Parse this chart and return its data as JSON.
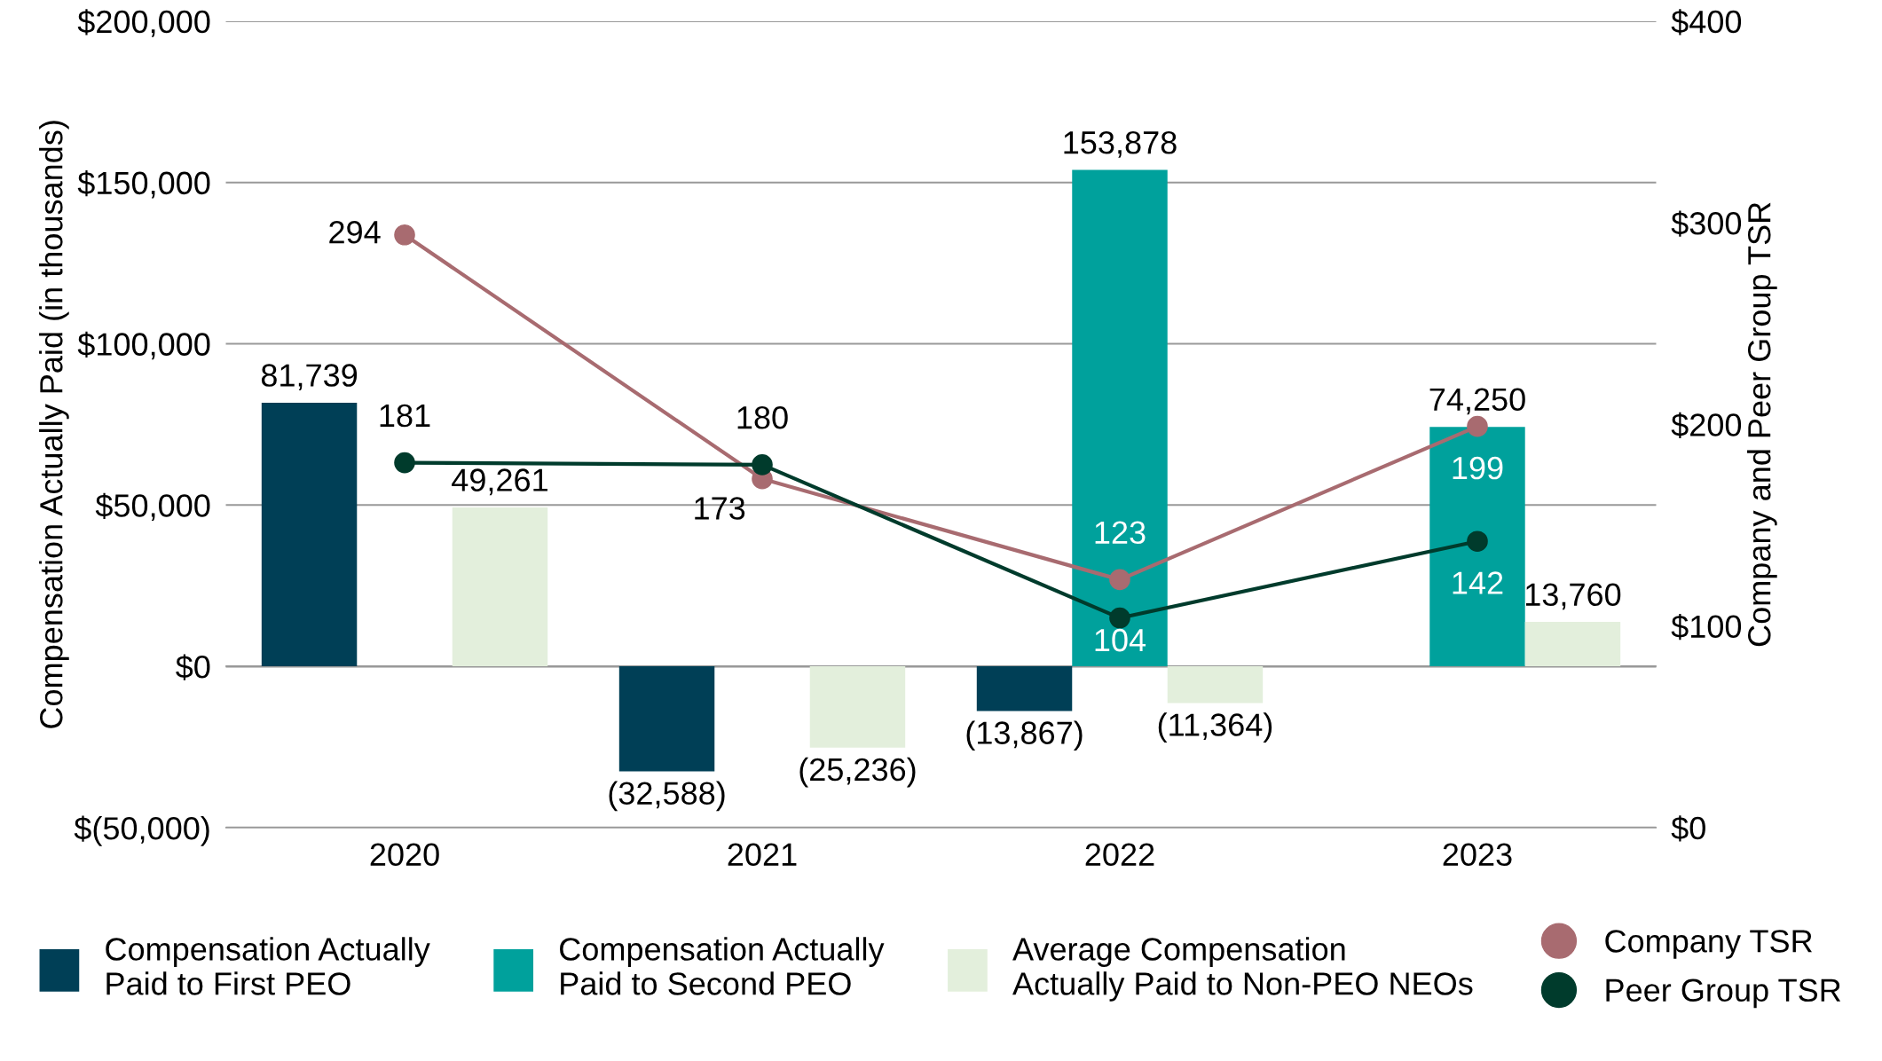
{
  "chart_data": {
    "type": "bar",
    "ylabel": "Compensation Actually Paid (in thousands)",
    "y2label": "Company and Peer Group TSR",
    "categories": [
      "2020",
      "2021",
      "2022",
      "2023"
    ],
    "series": [
      {
        "name": "Compensation Actually Paid to First PEO",
        "color": "#003f56",
        "values": [
          81739,
          -32588,
          -13867,
          null
        ],
        "value_labels": [
          "81,739",
          "(32,588)",
          "(13,867)",
          null
        ]
      },
      {
        "name": "Compensation Actually Paid to Second PEO",
        "color": "#00a19c",
        "values": [
          null,
          null,
          153878,
          74250
        ],
        "value_labels": [
          null,
          null,
          "153,878",
          "74,250"
        ]
      },
      {
        "name": "Average Compensation Actually Paid to Non-PEO NEOs",
        "color": "#e3efdc",
        "values": [
          49261,
          -25236,
          -11364,
          13760
        ],
        "value_labels": [
          "49,261",
          "(25,236)",
          "(11,364)",
          "13,760"
        ]
      },
      {
        "name": "Company TSR",
        "type": "line",
        "axis": "y2",
        "color": "#a86b70",
        "values": [
          294,
          173,
          123,
          199
        ],
        "value_labels": [
          "294",
          "173",
          "123",
          "199"
        ]
      },
      {
        "name": "Peer Group TSR",
        "type": "line",
        "axis": "y2",
        "color": "#003b2c",
        "values": [
          181,
          180,
          104,
          142
        ],
        "value_labels": [
          "181",
          "180",
          "104",
          "142"
        ]
      }
    ],
    "ylim": [
      -50000,
      200000
    ],
    "yticks": [
      {
        "value": -50000,
        "label": "$(50,000)"
      },
      {
        "value": 0,
        "label": "$0"
      },
      {
        "value": 50000,
        "label": "$50,000"
      },
      {
        "value": 100000,
        "label": "$100,000"
      },
      {
        "value": 150000,
        "label": "$150,000"
      },
      {
        "value": 200000,
        "label": "$200,000"
      }
    ],
    "y2lim": [
      0,
      400
    ],
    "y2ticks": [
      {
        "value": 0,
        "label": "$0"
      },
      {
        "value": 100,
        "label": "$100"
      },
      {
        "value": 200,
        "label": "$200"
      },
      {
        "value": 300,
        "label": "$300"
      },
      {
        "value": 400,
        "label": "$400"
      }
    ],
    "grid": "y",
    "legend": "bottom",
    "marker": "circle"
  }
}
